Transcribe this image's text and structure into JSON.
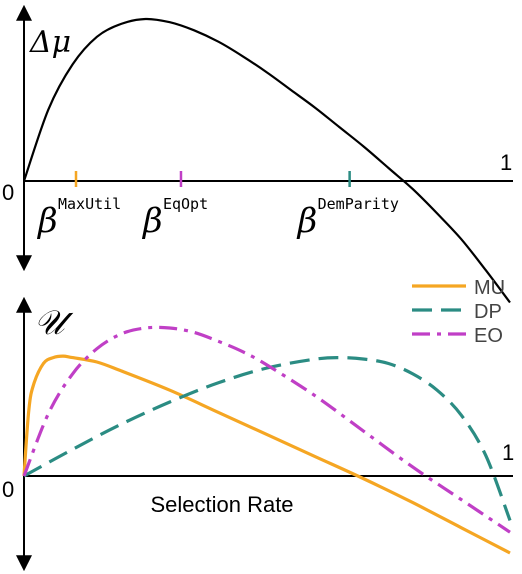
{
  "chart_data": [
    {
      "type": "line",
      "ylabel": "Δμ",
      "origin_label": "0",
      "xmax_label": "1",
      "xlim": [
        0,
        1
      ],
      "ylim": [
        -0.75,
        1.0
      ],
      "series": [
        {
          "color": "#000000",
          "x": [
            0,
            0.05,
            0.1,
            0.15,
            0.2,
            0.25,
            0.3,
            0.35,
            0.4,
            0.45,
            0.5,
            0.55,
            0.6,
            0.65,
            0.7,
            0.75,
            0.8,
            0.85,
            0.9,
            0.95,
            1.0
          ],
          "y": [
            0,
            0.44,
            0.72,
            0.89,
            0.97,
            1.0,
            0.98,
            0.93,
            0.86,
            0.77,
            0.67,
            0.56,
            0.45,
            0.33,
            0.21,
            0.08,
            -0.05,
            -0.2,
            -0.36,
            -0.55,
            -0.75
          ]
        }
      ],
      "markers": [
        {
          "label": "β",
          "superscript": "MaxUtil",
          "x": 0.107,
          "color": "#f5a623"
        },
        {
          "label": "β",
          "superscript": "EqOpt",
          "x": 0.323,
          "color": "#c03fc6"
        },
        {
          "label": "β",
          "superscript": "DemParity",
          "x": 0.67,
          "color": "#2b8c83"
        }
      ]
    },
    {
      "type": "line",
      "ylabel": "𝒰",
      "origin_label": "0",
      "xmax_label": "1",
      "xlabel": "Selection Rate",
      "xlim": [
        0,
        1
      ],
      "ylim": [
        -0.75,
        1.0
      ],
      "legend_position": "top-right",
      "series": [
        {
          "name": "MU",
          "color": "#f5a623",
          "dash": "solid",
          "x": [
            0,
            0.01,
            0.02,
            0.04,
            0.06,
            0.08,
            0.1,
            0.15,
            0.2,
            0.3,
            0.4,
            0.5,
            0.6,
            0.7,
            0.8,
            0.9,
            1.0
          ],
          "y": [
            0,
            0.45,
            0.62,
            0.76,
            0.8,
            0.81,
            0.8,
            0.77,
            0.71,
            0.58,
            0.43,
            0.28,
            0.13,
            -0.02,
            -0.18,
            -0.35,
            -0.52
          ]
        },
        {
          "name": "DP",
          "color": "#2b8c83",
          "dash": "dashed",
          "x": [
            0,
            0.1,
            0.2,
            0.3,
            0.4,
            0.5,
            0.6,
            0.65,
            0.7,
            0.75,
            0.8,
            0.85,
            0.9,
            0.95,
            1.0
          ],
          "y": [
            0,
            0.18,
            0.35,
            0.5,
            0.63,
            0.73,
            0.79,
            0.8,
            0.79,
            0.76,
            0.69,
            0.58,
            0.41,
            0.14,
            -0.3
          ]
        },
        {
          "name": "EO",
          "color": "#c03fc6",
          "dash": "dashdot",
          "x": [
            0,
            0.05,
            0.1,
            0.15,
            0.2,
            0.25,
            0.3,
            0.35,
            0.4,
            0.45,
            0.5,
            0.6,
            0.7,
            0.8,
            0.9,
            1.0
          ],
          "y": [
            0,
            0.42,
            0.69,
            0.86,
            0.96,
            1.0,
            1.0,
            0.97,
            0.91,
            0.84,
            0.75,
            0.54,
            0.3,
            0.06,
            -0.16,
            -0.38
          ]
        }
      ]
    }
  ]
}
